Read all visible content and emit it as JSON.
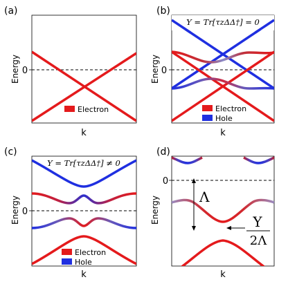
{
  "panels": [
    {
      "label": "(a)",
      "ylabel": "Energy",
      "xlabel": "k",
      "zero_label": "0",
      "formula": "",
      "legend": [
        {
          "name": "Electron",
          "color": "#e41a1c"
        }
      ]
    },
    {
      "label": "(b)",
      "ylabel": "Energy",
      "xlabel": "k",
      "zero_label": "0",
      "formula": "Υ = Tr[τzΔΔ†] = 0",
      "legend": [
        {
          "name": "Electron",
          "color": "#e41a1c"
        },
        {
          "name": "Hole",
          "color": "#1f2fe0"
        }
      ]
    },
    {
      "label": "(c)",
      "ylabel": "Energy",
      "xlabel": "k",
      "zero_label": "0",
      "formula": "Υ = Tr[τzΔΔ†] ≠ 0",
      "legend": [
        {
          "name": "Electron",
          "color": "#e41a1c"
        },
        {
          "name": "Hole",
          "color": "#1f2fe0"
        }
      ]
    },
    {
      "label": "(d)",
      "ylabel": "Energy",
      "xlabel": "k",
      "zero_label": "0",
      "gap_label": "Λ",
      "shift_num": "Υ",
      "shift_den": "2Λ",
      "legend": []
    }
  ],
  "colors": {
    "electron": "#e41a1c",
    "hole": "#1f2fe0",
    "mixed": "#8a8ac8"
  }
}
